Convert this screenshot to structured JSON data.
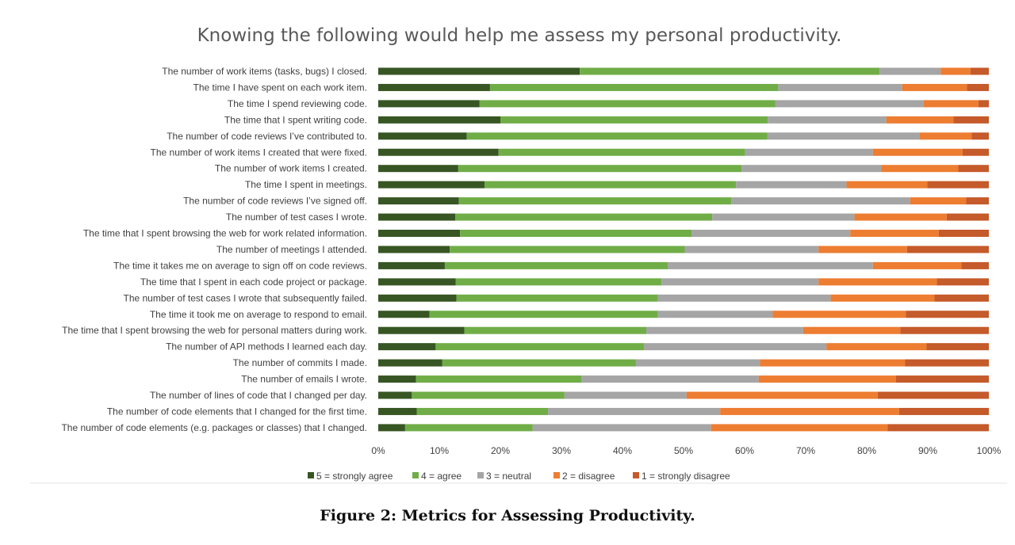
{
  "chart_data": {
    "type": "bar",
    "orientation": "horizontal",
    "stacked": true,
    "percent": true,
    "title": "Knowing the following would help me assess my personal productivity.",
    "xlabel": "",
    "ylabel": "",
    "xlim": [
      0,
      100
    ],
    "x_ticks": [
      "0%",
      "10%",
      "20%",
      "30%",
      "40%",
      "50%",
      "60%",
      "70%",
      "80%",
      "90%",
      "100%"
    ],
    "grid": false,
    "legend_position": "bottom",
    "categories": [
      "The number of work items (tasks, bugs) I closed.",
      "The time I have spent on each work item.",
      "The time I spend reviewing code.",
      "The time that I spent writing code.",
      "The number of code reviews I’ve contributed to.",
      "The number of work items I created that were fixed.",
      "The number of work items I created.",
      "The time I spent in meetings.",
      "The number of code reviews I’ve signed off.",
      "The number of test cases I wrote.",
      "The time that I spent browsing the web for work related information.",
      "The number of meetings I attended.",
      "The time it takes me on average to sign off on code reviews.",
      "The time that I spent in each code project or package.",
      "The number of test cases I wrote that subsequently failed.",
      "The time it took me on average to respond to email.",
      "The time that I spent browsing the web for personal matters  during work.",
      "The number of API methods I learned each day.",
      "The number of commits I made.",
      "The number of emails I wrote.",
      "The number of lines of code that I changed per day.",
      "The number of code elements that I changed for the first time.",
      "The number of code elements (e.g. packages or classes) that I changed."
    ],
    "series": [
      {
        "name": "5 = strongly agree",
        "color": "#375623",
        "values": [
          33.0,
          18.3,
          16.6,
          20.0,
          14.5,
          19.7,
          13.1,
          17.4,
          13.2,
          12.6,
          13.4,
          11.7,
          10.9,
          12.7,
          12.8,
          8.4,
          14.1,
          9.4,
          10.5,
          6.2,
          5.5,
          6.3,
          4.4
        ]
      },
      {
        "name": "4 = agree",
        "color": "#70AD47",
        "values": [
          49.1,
          47.2,
          48.4,
          43.8,
          49.2,
          40.4,
          46.4,
          41.2,
          44.6,
          42.1,
          37.9,
          38.5,
          36.5,
          33.7,
          33.0,
          37.4,
          29.8,
          34.1,
          31.7,
          27.1,
          25.0,
          21.5,
          20.9
        ]
      },
      {
        "name": "3  = neutral",
        "color": "#A5A5A5",
        "values": [
          10.0,
          20.3,
          24.3,
          19.4,
          25.0,
          20.9,
          22.9,
          18.1,
          29.3,
          23.3,
          26.0,
          21.9,
          33.6,
          25.7,
          28.3,
          18.8,
          25.7,
          29.9,
          20.3,
          29.0,
          20.0,
          28.2,
          29.2
        ]
      },
      {
        "name": "2 = disagree",
        "color": "#ED7D31",
        "values": [
          4.9,
          10.6,
          9.0,
          11.0,
          8.5,
          14.7,
          12.6,
          13.2,
          9.2,
          15.1,
          14.5,
          14.5,
          14.5,
          19.4,
          17.0,
          21.8,
          15.9,
          16.4,
          23.8,
          22.5,
          31.3,
          29.3,
          28.9
        ]
      },
      {
        "name": "1 = strongly disagree",
        "color": "#C55A2A",
        "values": [
          3.0,
          3.6,
          1.7,
          5.8,
          2.8,
          4.3,
          5.0,
          10.1,
          3.7,
          6.9,
          8.2,
          13.4,
          4.5,
          8.5,
          8.9,
          13.6,
          14.5,
          10.2,
          13.7,
          15.2,
          18.2,
          14.7,
          16.6
        ]
      }
    ]
  },
  "caption": "Figure 2: Metrics for Assessing Productivity."
}
